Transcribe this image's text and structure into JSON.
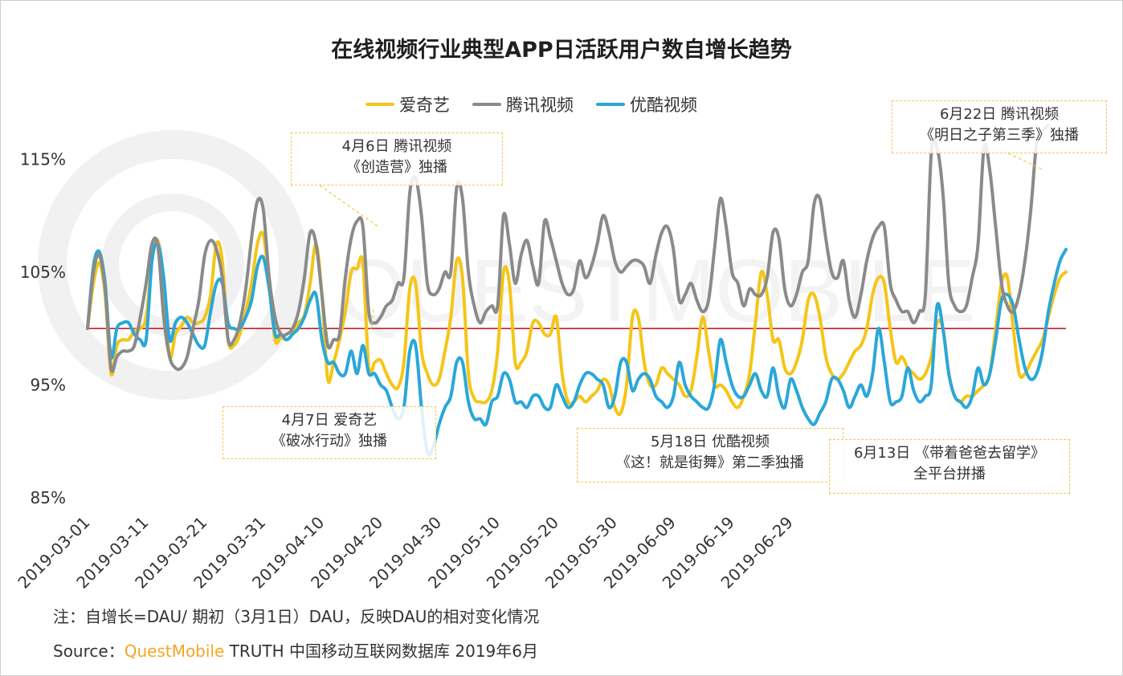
{
  "page": {
    "note": "注：自增长=DAU/ 期初（3月1日）DAU，反映DAU的相对变化情况",
    "source_label": "Source：",
    "source_brand": "QuestMobile",
    "source_rest": " TRUTH 中国移动互联网数据库 2019年6月",
    "watermark": "QUESTMOBILE"
  },
  "annotations": [
    {
      "line1": "4月6日  腾讯视频",
      "line2": "《创造营》独播"
    },
    {
      "line1": "4月7日  爱奇艺",
      "line2": "《破冰行动》独播"
    },
    {
      "line1": "5月18日 优酷视频",
      "line2": "《这！就是街舞》第二季独播"
    },
    {
      "line1": "6月13日 《带着爸爸去留学》",
      "line2": "全平台拼播"
    },
    {
      "line1": "6月22日  腾讯视频",
      "line2": "《明日之子第三季》独播"
    }
  ],
  "chart_data": {
    "type": "line",
    "title": "在线视频行业典型APP日活跃用户数自增长趋势",
    "xlabel": "",
    "ylabel": "",
    "ylim": [
      85,
      120
    ],
    "yticks": [
      85,
      95,
      105,
      115
    ],
    "ytick_labels": [
      "85%",
      "95%",
      "105%",
      "115%"
    ],
    "x_start": "2019-03-01",
    "x_end": "2019-06-29",
    "xtick_labels": [
      "2019-03-01",
      "2019-03-11",
      "2019-03-21",
      "2019-03-31",
      "2019-04-10",
      "2019-04-20",
      "2019-04-30",
      "2019-05-10",
      "2019-05-20",
      "2019-05-30",
      "2019-06-09",
      "2019-06-19",
      "2019-06-29"
    ],
    "baseline": 100,
    "legend_position": "top-center",
    "grid": false,
    "series": [
      {
        "name": "爱奇艺",
        "color": "#f5c518",
        "values": [
          100.0,
          104.0,
          105.8,
          103.0,
          96.0,
          98.5,
          99.0,
          99.0,
          99.8,
          100.0,
          101.0,
          106.0,
          107.8,
          104.0,
          97.5,
          99.5,
          100.2,
          101.0,
          100.5,
          100.5,
          101.0,
          103.0,
          107.5,
          106.0,
          99.0,
          98.5,
          99.5,
          101.5,
          104.0,
          107.5,
          108.3,
          104.0,
          99.0,
          99.2,
          99.0,
          99.5,
          100.5,
          101.2,
          104.0,
          107.5,
          103.0,
          95.5,
          97.0,
          99.0,
          101.5,
          105.0,
          105.3,
          105.8,
          96.5,
          97.0,
          97.2,
          96.0,
          95.0,
          94.8,
          97.0,
          103.5,
          104.0,
          98.0,
          96.0,
          95.0,
          95.5,
          98.0,
          101.0,
          106.0,
          104.5,
          96.0,
          93.8,
          93.5,
          93.5,
          94.5,
          98.0,
          105.0,
          104.0,
          97.0,
          97.0,
          98.0,
          100.5,
          100.5,
          99.5,
          99.5,
          101.0,
          96.0,
          93.5,
          93.5,
          94.0,
          93.5,
          94.0,
          94.5,
          95.5,
          95.0,
          93.0,
          92.5,
          95.0,
          101.0,
          101.0,
          97.0,
          95.0,
          95.0,
          96.5,
          96.0,
          95.5,
          95.0,
          94.0,
          94.5,
          97.5,
          101.0,
          98.0,
          95.0,
          95.0,
          94.5,
          93.5,
          93.0,
          94.0,
          96.0,
          100.5,
          105.0,
          103.0,
          99.0,
          99.0,
          96.5,
          96.0,
          97.0,
          99.0,
          102.5,
          103.0,
          101.0,
          97.5,
          96.0,
          95.5,
          96.0,
          97.0,
          98.0,
          98.5,
          100.0,
          103.0,
          104.5,
          104.0,
          100.0,
          97.0,
          97.5,
          96.5,
          96.0,
          95.5,
          96.0,
          97.5,
          100.5,
          100.0,
          96.0,
          94.0,
          93.5,
          94.0,
          94.0,
          94.5,
          95.0,
          96.0,
          100.0,
          104.0,
          104.5,
          100.0,
          96.0,
          96.0,
          97.0,
          98.0,
          99.0,
          101.0,
          103.0,
          104.5,
          105.0
        ]
      },
      {
        "name": "腾讯视频",
        "color": "#8a8a8a",
        "values": [
          100.0,
          105.0,
          106.5,
          103.5,
          96.5,
          97.5,
          98.0,
          98.0,
          98.5,
          101.0,
          104.0,
          107.5,
          107.3,
          101.0,
          97.5,
          96.5,
          96.5,
          97.5,
          100.0,
          102.5,
          106.5,
          107.8,
          107.0,
          104.5,
          99.0,
          99.0,
          100.5,
          103.5,
          108.0,
          111.3,
          110.5,
          104.5,
          101.0,
          99.5,
          99.5,
          100.0,
          101.5,
          104.5,
          108.5,
          107.5,
          103.0,
          98.5,
          99.0,
          99.5,
          104.5,
          108.0,
          109.5,
          109.0,
          101.5,
          100.5,
          101.0,
          102.0,
          102.5,
          104.0,
          104.5,
          112.0,
          113.3,
          110.0,
          104.0,
          103.0,
          103.5,
          105.0,
          105.0,
          112.5,
          111.5,
          105.0,
          102.0,
          100.5,
          101.5,
          102.0,
          102.0,
          110.0,
          107.5,
          104.0,
          106.5,
          107.8,
          105.5,
          104.0,
          109.5,
          108.0,
          106.0,
          104.0,
          103.0,
          103.5,
          106.0,
          104.5,
          105.5,
          107.5,
          110.0,
          108.5,
          106.0,
          105.0,
          105.5,
          106.0,
          106.0,
          105.5,
          104.0,
          106.5,
          108.5,
          109.0,
          107.0,
          102.5,
          103.0,
          104.0,
          102.5,
          101.5,
          102.5,
          107.0,
          111.5,
          109.0,
          105.0,
          104.0,
          102.0,
          103.5,
          103.0,
          103.0,
          104.5,
          108.5,
          108.0,
          103.5,
          102.0,
          103.0,
          105.0,
          106.0,
          111.0,
          111.5,
          108.0,
          105.0,
          104.5,
          106.0,
          102.5,
          101.0,
          103.0,
          106.0,
          108.0,
          109.0,
          109.0,
          104.0,
          102.5,
          101.5,
          101.5,
          100.5,
          101.5,
          103.0,
          115.5,
          116.0,
          112.0,
          104.0,
          102.0,
          101.5,
          102.0,
          104.5,
          107.5,
          116.0,
          114.0,
          109.0,
          104.0,
          102.0,
          101.5,
          103.0,
          106.0,
          110.5,
          116.5,
          117.5,
          118.0
        ]
      },
      {
        "name": "优酷视频",
        "color": "#2aa7d8",
        "values": [
          100.0,
          105.5,
          106.8,
          104.0,
          97.5,
          100.0,
          100.5,
          100.5,
          99.5,
          99.0,
          99.0,
          106.0,
          107.5,
          104.5,
          99.0,
          100.5,
          101.0,
          100.5,
          99.5,
          98.5,
          98.5,
          101.5,
          104.0,
          104.0,
          100.5,
          100.0,
          100.0,
          101.0,
          102.5,
          105.5,
          106.3,
          103.5,
          99.5,
          99.5,
          99.0,
          99.5,
          100.0,
          101.0,
          102.5,
          103.0,
          99.0,
          97.0,
          97.0,
          96.0,
          96.0,
          98.0,
          96.0,
          98.5,
          96.0,
          96.0,
          95.0,
          94.5,
          93.0,
          92.0,
          93.0,
          98.0,
          98.5,
          93.0,
          89.0,
          89.5,
          91.5,
          93.0,
          94.0,
          97.0,
          97.0,
          93.5,
          92.0,
          92.0,
          91.5,
          93.5,
          94.0,
          96.0,
          95.5,
          93.5,
          93.5,
          93.0,
          94.0,
          94.0,
          93.0,
          93.0,
          95.0,
          94.0,
          93.0,
          93.5,
          95.0,
          96.0,
          96.0,
          95.5,
          95.0,
          93.0,
          94.0,
          97.0,
          97.0,
          94.5,
          95.5,
          96.0,
          95.5,
          94.0,
          93.5,
          93.0,
          94.0,
          97.0,
          95.0,
          94.0,
          93.5,
          93.0,
          93.0,
          95.0,
          99.0,
          97.0,
          95.0,
          94.0,
          94.0,
          95.0,
          96.0,
          94.5,
          94.0,
          96.5,
          94.0,
          93.0,
          95.5,
          94.5,
          93.0,
          92.0,
          91.5,
          92.5,
          93.5,
          95.5,
          95.5,
          94.5,
          93.0,
          94.0,
          95.0,
          94.0,
          96.0,
          100.0,
          97.0,
          93.5,
          93.5,
          94.0,
          96.5,
          94.5,
          93.5,
          94.0,
          95.0,
          102.0,
          100.0,
          96.0,
          94.0,
          93.5,
          93.0,
          94.0,
          96.5,
          95.0,
          96.0,
          99.0,
          102.5,
          103.0,
          102.0,
          99.0,
          96.5,
          95.5,
          96.0,
          98.0,
          101.5,
          104.0,
          106.0,
          107.0
        ]
      }
    ]
  }
}
